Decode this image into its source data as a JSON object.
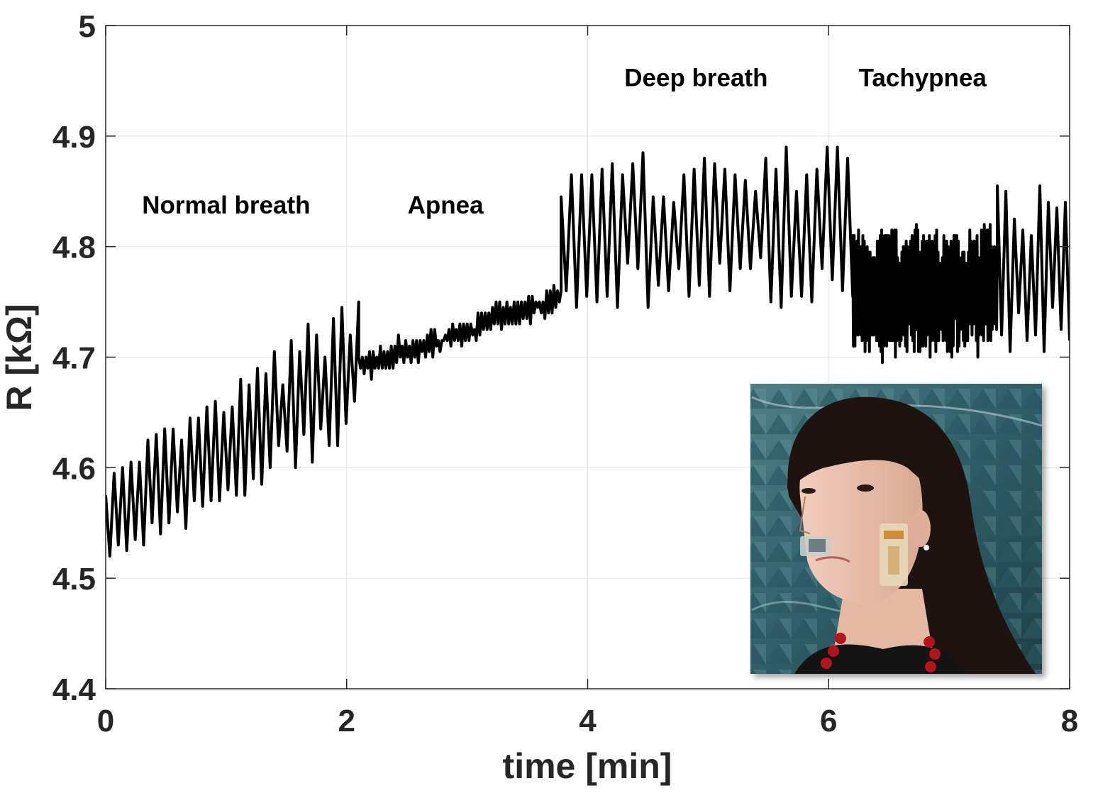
{
  "chart_data": {
    "type": "line",
    "xlabel": "time [min]",
    "ylabel": "R [kΩ]",
    "xlim": [
      0,
      8
    ],
    "ylim": [
      4.4,
      5
    ],
    "xticks": [
      "0",
      "2",
      "4",
      "6",
      "8"
    ],
    "yticks": [
      "4.4",
      "4.5",
      "4.6",
      "4.7",
      "4.8",
      "4.9",
      "5"
    ],
    "grid": true,
    "series_color": "#000000",
    "annotations": [
      {
        "text": "Normal breath",
        "x": 1.0,
        "y": 4.83
      },
      {
        "text": "Apnea",
        "x": 2.82,
        "y": 4.83
      },
      {
        "text": "Deep breath",
        "x": 4.9,
        "y": 4.945
      },
      {
        "text": "Tachypnea",
        "x": 6.78,
        "y": 4.945
      }
    ],
    "inset_image": "photo of a woman wearing resistive breathing sensors under her nose and on her cheek",
    "segments": [
      {
        "phase": "Normal breath",
        "t_start": 0.0,
        "t_end": 2.1,
        "mean_start": 4.55,
        "mean_end": 4.69,
        "amp_start": 0.035,
        "amp_end": 0.055,
        "period": 0.07
      },
      {
        "phase": "Apnea",
        "t_start": 2.1,
        "t_end": 3.78,
        "mean_start": 4.69,
        "mean_end": 4.755,
        "amp_start": 0.008,
        "amp_end": 0.008,
        "period": 0.03
      },
      {
        "phase": "Deep breath",
        "t_start": 3.78,
        "t_end": 6.2,
        "mean_start": 4.81,
        "mean_end": 4.82,
        "amp_start": 0.05,
        "amp_end": 0.06,
        "period": 0.085
      },
      {
        "phase": "Tachypnea",
        "t_start": 6.2,
        "t_end": 7.4,
        "mean_start": 4.76,
        "mean_end": 4.76,
        "amp_start": 0.045,
        "amp_end": 0.045,
        "period": 0.012
      },
      {
        "phase": "Tachypnea",
        "t_start": 7.4,
        "t_end": 8.0,
        "mean_start": 4.78,
        "mean_end": 4.78,
        "amp_start": 0.06,
        "amp_end": 0.06,
        "period": 0.07
      }
    ]
  }
}
